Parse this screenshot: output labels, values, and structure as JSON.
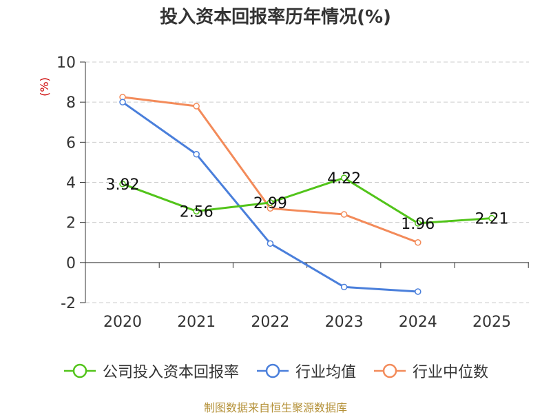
{
  "chart_data": {
    "type": "line",
    "title": "投入资本回报率历年情况(%)",
    "ylabel": "(%)",
    "xlabel": "",
    "categories": [
      "2020",
      "2021",
      "2022",
      "2023",
      "2024",
      "2025"
    ],
    "ylim": [
      -2,
      10
    ],
    "yticks": [
      -2,
      0,
      2,
      4,
      6,
      8,
      10
    ],
    "grid": true,
    "legend_position": "bottom",
    "series": [
      {
        "name": "公司投入资本回报率",
        "color": "#52c41a",
        "values": [
          3.92,
          2.56,
          2.99,
          4.22,
          1.96,
          2.21
        ],
        "labels": [
          "3.92",
          "2.56",
          "2.99",
          "4.22",
          "1.96",
          "2.21"
        ]
      },
      {
        "name": "行业均值",
        "color": "#4a7fdb",
        "values": [
          8.0,
          5.4,
          0.95,
          -1.22,
          -1.45,
          null
        ]
      },
      {
        "name": "行业中位数",
        "color": "#f38b5a",
        "values": [
          8.25,
          7.8,
          2.7,
          2.4,
          1.0,
          null
        ]
      }
    ]
  },
  "source": "制图数据来自恒生聚源数据库"
}
